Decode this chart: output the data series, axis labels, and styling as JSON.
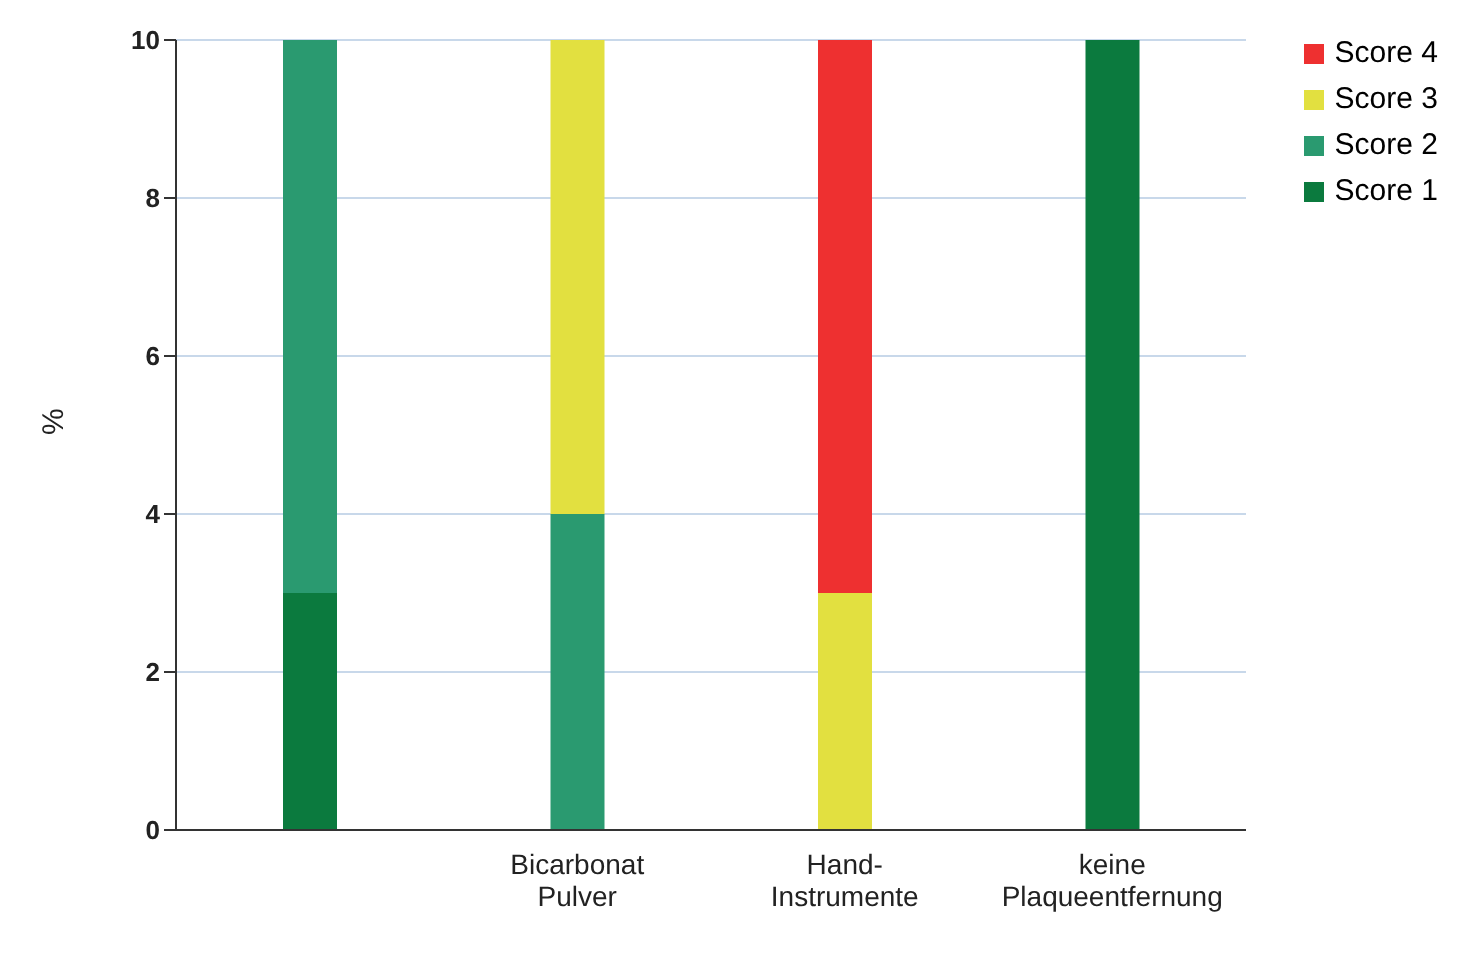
{
  "chart_data": {
    "type": "bar",
    "stacked": true,
    "ylabel": "%",
    "categories": [
      null,
      "Bicarbonat Pulver",
      "Hand-Instrumente",
      "keine Plaqueentfernung"
    ],
    "series": [
      {
        "name": "Score 1",
        "color": "#0b7a3e",
        "values": [
          3,
          0,
          0,
          10
        ]
      },
      {
        "name": "Score 2",
        "color": "#2a9a70",
        "values": [
          7,
          4,
          0,
          0
        ]
      },
      {
        "name": "Score 3",
        "color": "#e2e040",
        "values": [
          0,
          6,
          3,
          0
        ]
      },
      {
        "name": "Score 4",
        "color": "#ee3030",
        "values": [
          0,
          0,
          7,
          0
        ]
      }
    ],
    "ylim": [
      0,
      10
    ],
    "yticks": [
      0,
      2,
      4,
      6,
      8,
      10
    ],
    "grid": "y",
    "legend": "top right"
  }
}
